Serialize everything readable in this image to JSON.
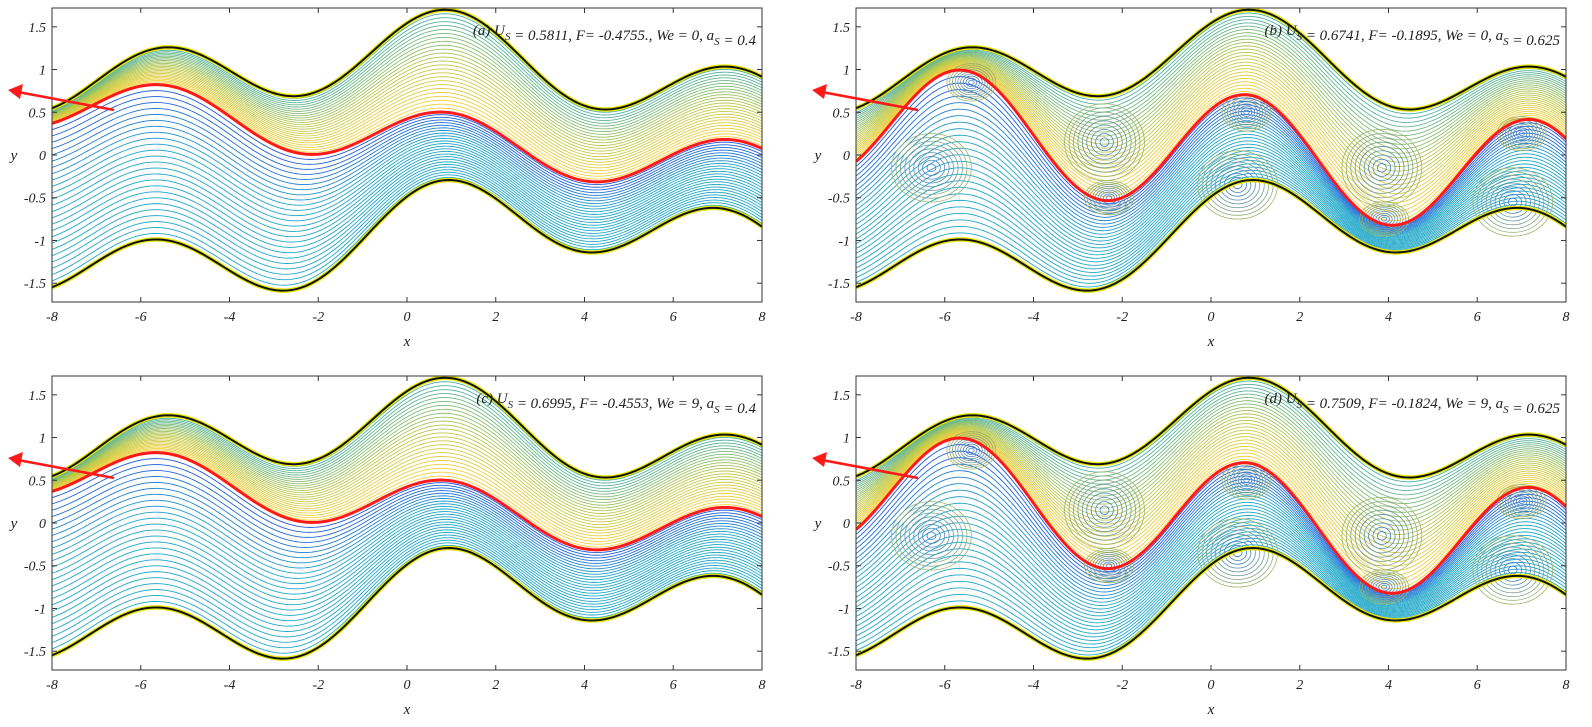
{
  "chart_data": [
    {
      "type": "contour",
      "panel": "(a)",
      "annotation": {
        "label": "(a)",
        "U": "0.5811",
        "F": "-0.4755.",
        "We": "0",
        "a": "0.4"
      },
      "xlabel": "x",
      "ylabel": "y",
      "xlim": [
        -8,
        8
      ],
      "ylim": [
        -1.72,
        1.72
      ],
      "xticks": [
        "-8",
        "-6",
        "-4",
        "-2",
        "0",
        "2",
        "4",
        "6",
        "8"
      ],
      "yticks": [
        "-1.5",
        "-1",
        "-0.5",
        "0",
        "0.5",
        "1",
        "1.5"
      ],
      "amplitude_ratio": 0.4,
      "trapped_vortices": false
    },
    {
      "type": "contour",
      "panel": "(b)",
      "annotation": {
        "label": "(b)",
        "U": "0.6741",
        "F": "-0.1895",
        "We": "0",
        "a": "0.625"
      },
      "xlabel": "x",
      "ylabel": "y",
      "xlim": [
        -8,
        8
      ],
      "ylim": [
        -1.72,
        1.72
      ],
      "xticks": [
        "-8",
        "-6",
        "-4",
        "-2",
        "0",
        "2",
        "4",
        "6",
        "8"
      ],
      "yticks": [
        "-1.5",
        "-1",
        "-0.5",
        "0",
        "0.5",
        "1",
        "1.5"
      ],
      "amplitude_ratio": 0.625,
      "trapped_vortices": true
    },
    {
      "type": "contour",
      "panel": "(c)",
      "annotation": {
        "label": "(c)",
        "U": "0.6995",
        "F": "-0.4553",
        "We": "9",
        "a": "0.4"
      },
      "xlabel": "x",
      "ylabel": "y",
      "xlim": [
        -8,
        8
      ],
      "ylim": [
        -1.72,
        1.72
      ],
      "xticks": [
        "-8",
        "-6",
        "-4",
        "-2",
        "0",
        "2",
        "4",
        "6",
        "8"
      ],
      "yticks": [
        "-1.5",
        "-1",
        "-0.5",
        "0",
        "0.5",
        "1",
        "1.5"
      ],
      "amplitude_ratio": 0.4,
      "trapped_vortices": false
    },
    {
      "type": "contour",
      "panel": "(d)",
      "annotation": {
        "label": "(d)",
        "U": "0.7509",
        "F": "-0.1824",
        "We": "9",
        "a": "0.625"
      },
      "xlabel": "x",
      "ylabel": "y",
      "xlim": [
        -8,
        8
      ],
      "ylim": [
        -1.72,
        1.72
      ],
      "xticks": [
        "-8",
        "-6",
        "-4",
        "-2",
        "0",
        "2",
        "4",
        "6",
        "8"
      ],
      "yticks": [
        "-1.5",
        "-1",
        "-0.5",
        "0",
        "0.5",
        "1",
        "1.5"
      ],
      "amplitude_ratio": 0.625,
      "trapped_vortices": true
    }
  ],
  "colors": {
    "interface": "#ff1a1a",
    "wall": "#111111",
    "wall_outline": "#e8e800",
    "arrow": "#ff1a1a",
    "upper_warm": "#ffd23a",
    "upper_mid": "#b8c84a",
    "lower_deep": "#1f4fe0",
    "lower_mid": "#1fa7c8",
    "vortex_core": "#2f6fe0"
  }
}
